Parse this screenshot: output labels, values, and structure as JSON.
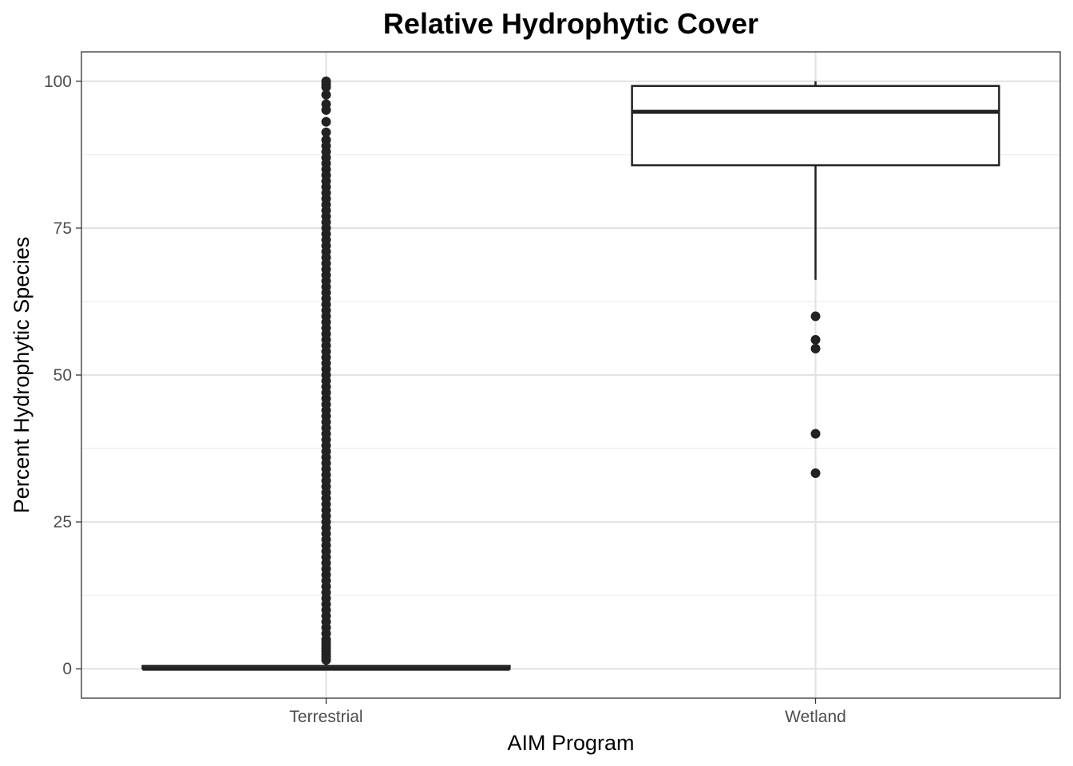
{
  "chart_data": {
    "type": "boxplot",
    "title": "Relative Hydrophytic Cover",
    "xlabel": "AIM Program",
    "ylabel": "Percent Hydrophytic Species",
    "categories": [
      "Terrestrial",
      "Wetland"
    ],
    "ylim": [
      -5,
      105
    ],
    "yticks": [
      0,
      25,
      50,
      75,
      100
    ],
    "y_tick_labels": [
      "0",
      "25",
      "50",
      "75",
      "100"
    ],
    "grid": true,
    "legend": "none",
    "boxes": [
      {
        "category": "Terrestrial",
        "min": 0,
        "q1": 0,
        "median": 0,
        "q3": 0.5,
        "max": 1.2,
        "outliers": [
          1.5,
          2,
          2.5,
          3,
          3.5,
          4,
          4.5,
          5,
          6,
          7,
          8,
          9,
          10,
          11,
          12,
          13,
          14,
          15,
          16,
          17,
          18,
          19,
          20,
          21,
          22,
          23,
          24,
          25,
          26,
          27,
          28,
          29,
          30,
          31,
          32,
          33,
          34,
          35,
          36,
          37,
          38,
          39,
          40,
          41,
          42,
          43,
          44,
          45,
          46,
          47,
          48,
          49,
          50,
          51,
          52,
          53,
          54,
          55,
          56,
          57,
          58,
          59,
          60,
          61,
          62,
          63,
          64,
          65,
          66,
          67,
          68,
          69,
          70,
          71,
          72,
          73,
          74,
          75,
          76,
          77,
          78,
          79,
          80,
          81,
          82,
          83,
          84,
          85,
          86,
          87,
          88,
          89,
          90,
          91.3,
          93.1,
          95.1,
          96.1,
          97.7,
          99,
          99.5,
          100
        ]
      },
      {
        "category": "Wetland",
        "min": 66.2,
        "q1": 85.7,
        "median": 94.8,
        "q3": 99.2,
        "max": 100,
        "outliers": [
          60,
          56,
          54.5,
          40,
          33.3
        ]
      }
    ]
  }
}
